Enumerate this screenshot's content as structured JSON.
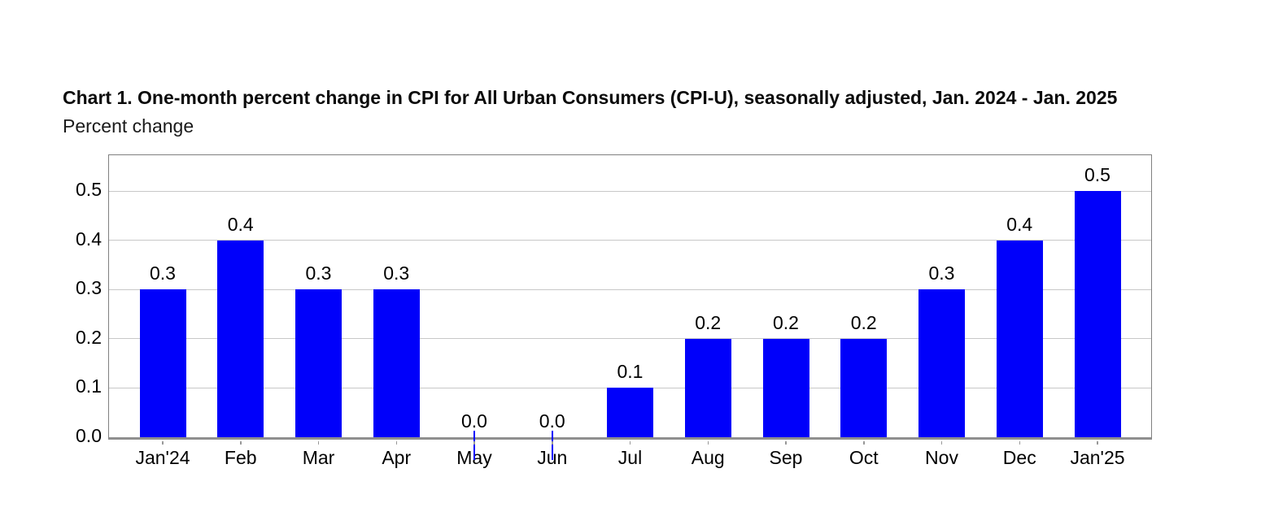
{
  "chart_data": {
    "type": "bar",
    "title": "Chart 1. One-month percent change in CPI for All Urban Consumers (CPI-U), seasonally adjusted, Jan. 2024 - Jan. 2025",
    "subtitle": "Percent change",
    "categories": [
      "Jan'24",
      "Feb",
      "Mar",
      "Apr",
      "May",
      "Jun",
      "Jul",
      "Aug",
      "Sep",
      "Oct",
      "Nov",
      "Dec",
      "Jan'25"
    ],
    "values": [
      0.3,
      0.4,
      0.3,
      0.3,
      0.0,
      0.0,
      0.1,
      0.2,
      0.2,
      0.2,
      0.3,
      0.4,
      0.5
    ],
    "data_labels": [
      "0.3",
      "0.4",
      "0.3",
      "0.3",
      "0.0",
      "0.0",
      "0.1",
      "0.2",
      "0.2",
      "0.2",
      "0.3",
      "0.4",
      "0.5"
    ],
    "xlabel": "",
    "ylabel": "Percent change",
    "yticks": [
      0.0,
      0.1,
      0.2,
      0.3,
      0.4,
      0.5
    ],
    "ytick_labels": [
      "0.0",
      "0.1",
      "0.2",
      "0.3",
      "0.4",
      "0.5"
    ],
    "ylim": [
      0,
      0.573
    ],
    "grid": true,
    "legend": null,
    "colors": {
      "bar": "#0000FA",
      "gridline": "#c8c8c8",
      "plot_border": "#808080",
      "axis_line": "#8f8f8f",
      "tick": "#999999",
      "text": "#000000"
    }
  }
}
